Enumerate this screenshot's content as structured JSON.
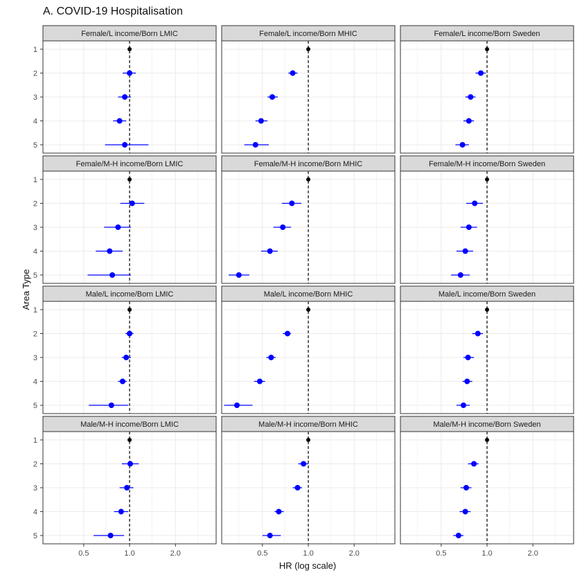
{
  "title": "A. COVID-19 Hospitalisation",
  "chart_data": {
    "type": "scatter",
    "style": "forest plot with horizontal error bars, faceted 4x3",
    "xlabel": "HR (log scale)",
    "ylabel": "Area Type",
    "x_scale": "log",
    "xlim": [
      0.27,
      3.7
    ],
    "x_ticks": [
      0.5,
      1.0,
      2.0
    ],
    "x_tick_labels": [
      "0.5",
      "1.0",
      "2.0"
    ],
    "y_categories": [
      "1",
      "2",
      "3",
      "4",
      "5"
    ],
    "reference_line": 1.0,
    "grid": true,
    "colors": {
      "reference_point": "#000000",
      "estimate_point": "#0000ff",
      "error_bar": "#0000ff",
      "strip_fill": "#d9d9d9",
      "grid": "#ebebeb"
    },
    "panels": [
      {
        "label": "Female/L income/Born LMIC",
        "hr": [
          1.0,
          1.0,
          0.93,
          0.86,
          0.93
        ],
        "lower": [
          null,
          0.9,
          0.84,
          0.78,
          0.69
        ],
        "upper": [
          null,
          1.1,
          1.02,
          0.95,
          1.33
        ]
      },
      {
        "label": "Female/L income/Born MHIC",
        "hr": [
          1.0,
          0.79,
          0.58,
          0.49,
          0.45
        ],
        "lower": [
          null,
          0.74,
          0.54,
          0.45,
          0.38
        ],
        "upper": [
          null,
          0.85,
          0.63,
          0.54,
          0.55
        ]
      },
      {
        "label": "Female/L income/Born Sweden",
        "hr": [
          1.0,
          0.91,
          0.78,
          0.76,
          0.69
        ],
        "lower": [
          null,
          0.84,
          0.72,
          0.7,
          0.62
        ],
        "upper": [
          null,
          0.98,
          0.84,
          0.82,
          0.76
        ]
      },
      {
        "label": "Female/M-H income/Born LMIC",
        "hr": [
          1.0,
          1.04,
          0.84,
          0.74,
          0.77
        ],
        "lower": [
          null,
          0.87,
          0.68,
          0.6,
          0.53
        ],
        "upper": [
          null,
          1.25,
          1.02,
          0.9,
          1.02
        ]
      },
      {
        "label": "Female/M-H income/Born MHIC",
        "hr": [
          1.0,
          0.78,
          0.68,
          0.56,
          0.35
        ],
        "lower": [
          null,
          0.67,
          0.59,
          0.49,
          0.3
        ],
        "upper": [
          null,
          0.9,
          0.77,
          0.63,
          0.41
        ]
      },
      {
        "label": "Female/M-H income/Born Sweden",
        "hr": [
          1.0,
          0.83,
          0.76,
          0.72,
          0.67
        ],
        "lower": [
          null,
          0.73,
          0.67,
          0.63,
          0.58
        ],
        "upper": [
          null,
          0.94,
          0.86,
          0.81,
          0.77
        ]
      },
      {
        "label": "Male/L income/Born LMIC",
        "hr": [
          1.0,
          1.0,
          0.95,
          0.9,
          0.76
        ],
        "lower": [
          null,
          0.94,
          0.89,
          0.84,
          0.54
        ],
        "upper": [
          null,
          1.06,
          1.02,
          0.96,
          0.98
        ]
      },
      {
        "label": "Male/L income/Born MHIC",
        "hr": [
          1.0,
          0.73,
          0.57,
          0.48,
          0.34
        ],
        "lower": [
          null,
          0.68,
          0.53,
          0.44,
          0.28
        ],
        "upper": [
          null,
          0.77,
          0.61,
          0.52,
          0.43
        ]
      },
      {
        "label": "Male/L income/Born Sweden",
        "hr": [
          1.0,
          0.87,
          0.75,
          0.74,
          0.7
        ],
        "lower": [
          null,
          0.8,
          0.7,
          0.69,
          0.63
        ],
        "upper": [
          null,
          0.94,
          0.82,
          0.8,
          0.77
        ]
      },
      {
        "label": "Male/M-H income/Born LMIC",
        "hr": [
          1.0,
          1.01,
          0.96,
          0.88,
          0.75
        ],
        "lower": [
          null,
          0.89,
          0.86,
          0.79,
          0.58
        ],
        "upper": [
          null,
          1.15,
          1.06,
          0.98,
          0.92
        ]
      },
      {
        "label": "Male/M-H income/Born MHIC",
        "hr": [
          1.0,
          0.93,
          0.85,
          0.64,
          0.56
        ],
        "lower": [
          null,
          0.86,
          0.79,
          0.6,
          0.5
        ],
        "upper": [
          null,
          1.0,
          0.91,
          0.69,
          0.66
        ]
      },
      {
        "label": "Male/M-H income/Born Sweden",
        "hr": [
          1.0,
          0.82,
          0.73,
          0.72,
          0.65
        ],
        "lower": [
          null,
          0.75,
          0.67,
          0.66,
          0.6
        ],
        "upper": [
          null,
          0.88,
          0.79,
          0.78,
          0.7
        ]
      }
    ]
  }
}
